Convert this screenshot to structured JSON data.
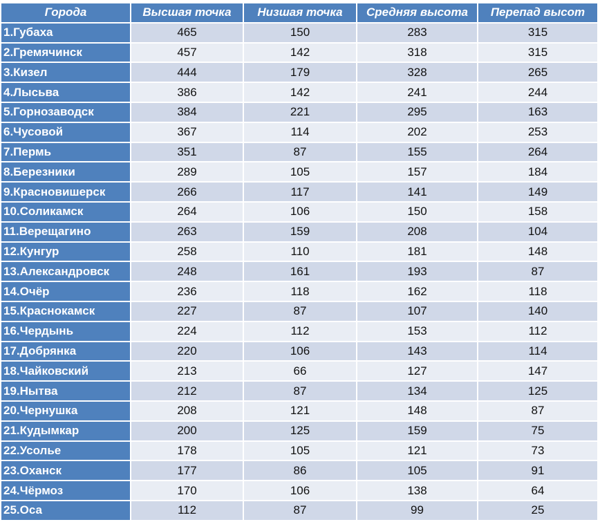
{
  "chart_data": {
    "type": "table",
    "columns": [
      "Города",
      "Высшая точка",
      "Низшая точка",
      "Средняя высота",
      "Перепад высот"
    ],
    "rows": [
      [
        "1.Губаха",
        465,
        150,
        283,
        315
      ],
      [
        "2.Гремячинск",
        457,
        142,
        318,
        315
      ],
      [
        "3.Кизел",
        444,
        179,
        328,
        265
      ],
      [
        "4.Лысьва",
        386,
        142,
        241,
        244
      ],
      [
        "5.Горнозаводск",
        384,
        221,
        295,
        163
      ],
      [
        "6.Чусовой",
        367,
        114,
        202,
        253
      ],
      [
        "7.Пермь",
        351,
        87,
        155,
        264
      ],
      [
        "8.Березники",
        289,
        105,
        157,
        184
      ],
      [
        "9.Красновишерск",
        266,
        117,
        141,
        149
      ],
      [
        "10.Соликамск",
        264,
        106,
        150,
        158
      ],
      [
        "11.Верещагино",
        263,
        159,
        208,
        104
      ],
      [
        "12.Кунгур",
        258,
        110,
        181,
        148
      ],
      [
        "13.Александровск",
        248,
        161,
        193,
        87
      ],
      [
        "14.Очёр",
        236,
        118,
        162,
        118
      ],
      [
        "15.Краснокамск",
        227,
        87,
        107,
        140
      ],
      [
        "16.Чердынь",
        224,
        112,
        153,
        112
      ],
      [
        "17.Добрянка",
        220,
        106,
        143,
        114
      ],
      [
        "18.Чайковский",
        213,
        66,
        127,
        147
      ],
      [
        "19.Нытва",
        212,
        87,
        134,
        125
      ],
      [
        "20.Чернушка",
        208,
        121,
        148,
        87
      ],
      [
        "21.Кудымкар",
        200,
        125,
        159,
        75
      ],
      [
        "22.Усолье",
        178,
        105,
        121,
        73
      ],
      [
        "23.Оханск",
        177,
        86,
        105,
        91
      ],
      [
        "24.Чёрмоз",
        170,
        106,
        138,
        64
      ],
      [
        "25.Оса",
        112,
        87,
        99,
        25
      ]
    ]
  },
  "colors": {
    "header_bg": "#4f81bd",
    "row_odd": "#d0d8e8",
    "row_even": "#e9edf4",
    "header_text": "#ffffff"
  }
}
